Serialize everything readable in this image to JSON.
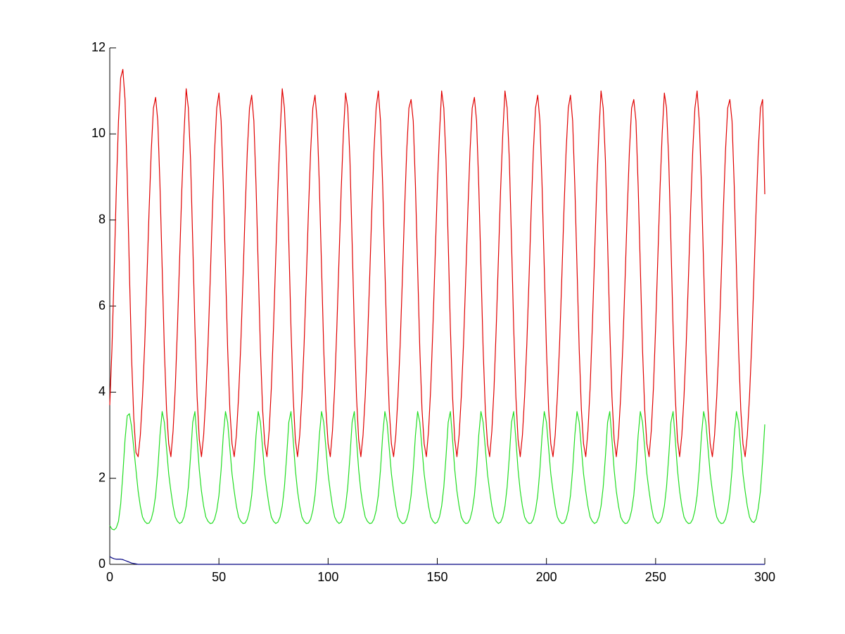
{
  "chart_data": {
    "type": "line",
    "x": [
      0,
      1,
      2,
      3,
      4,
      5,
      6,
      7,
      8,
      9,
      10,
      11,
      12,
      13,
      14,
      15,
      16,
      17,
      18,
      19,
      20,
      21,
      22,
      23,
      24,
      25,
      26,
      27,
      28,
      29,
      30,
      31,
      32,
      33,
      34,
      35,
      36,
      37,
      38,
      39,
      40,
      41,
      42,
      43,
      44,
      45,
      46,
      47,
      48,
      49,
      50,
      51,
      52,
      53,
      54,
      55,
      56,
      57,
      58,
      59,
      60,
      61,
      62,
      63,
      64,
      65,
      66,
      67,
      68,
      69,
      70,
      71,
      72,
      73,
      74,
      75,
      76,
      77,
      78,
      79,
      80,
      81,
      82,
      83,
      84,
      85,
      86,
      87,
      88,
      89,
      90,
      91,
      92,
      93,
      94,
      95,
      96,
      97,
      98,
      99,
      100,
      101,
      102,
      103,
      104,
      105,
      106,
      107,
      108,
      109,
      110,
      111,
      112,
      113,
      114,
      115,
      116,
      117,
      118,
      119,
      120,
      121,
      122,
      123,
      124,
      125,
      126,
      127,
      128,
      129,
      130,
      131,
      132,
      133,
      134,
      135,
      136,
      137,
      138,
      139,
      140,
      141,
      142,
      143,
      144,
      145,
      146,
      147,
      148,
      149,
      150,
      151,
      152,
      153,
      154,
      155,
      156,
      157,
      158,
      159,
      160,
      161,
      162,
      163,
      164,
      165,
      166,
      167,
      168,
      169,
      170,
      171,
      172,
      173,
      174,
      175,
      176,
      177,
      178,
      179,
      180,
      181,
      182,
      183,
      184,
      185,
      186,
      187,
      188,
      189,
      190,
      191,
      192,
      193,
      194,
      195,
      196,
      197,
      198,
      199,
      200,
      201,
      202,
      203,
      204,
      205,
      206,
      207,
      208,
      209,
      210,
      211,
      212,
      213,
      214,
      215,
      216,
      217,
      218,
      219,
      220,
      221,
      222,
      223,
      224,
      225,
      226,
      227,
      228,
      229,
      230,
      231,
      232,
      233,
      234,
      235,
      236,
      237,
      238,
      239,
      240,
      241,
      242,
      243,
      244,
      245,
      246,
      247,
      248,
      249,
      250,
      251,
      252,
      253,
      254,
      255,
      256,
      257,
      258,
      259,
      260,
      261,
      262,
      263,
      264,
      265,
      266,
      267,
      268,
      269,
      270,
      271,
      272,
      273,
      274,
      275,
      276,
      277,
      278,
      279,
      280,
      281,
      282,
      283,
      284,
      285,
      286,
      287,
      288,
      289,
      290,
      291,
      292,
      293,
      294,
      295,
      296,
      297,
      298,
      299,
      300
    ],
    "series": [
      {
        "color": "#e00000",
        "values": [
          3.7,
          5.0,
          6.8,
          8.7,
          10.3,
          11.3,
          11.5,
          10.8,
          9.0,
          6.8,
          4.8,
          3.4,
          2.6,
          2.5,
          3.0,
          3.9,
          5.1,
          6.6,
          8.2,
          9.6,
          10.6,
          10.85,
          10.3,
          8.8,
          6.9,
          5.0,
          3.6,
          2.8,
          2.5,
          3.1,
          4.1,
          5.5,
          7.1,
          8.7,
          10.0,
          11.05,
          10.6,
          9.4,
          7.5,
          5.5,
          3.9,
          2.9,
          2.5,
          3.0,
          3.9,
          5.1,
          6.6,
          8.2,
          9.6,
          10.6,
          10.95,
          10.3,
          8.8,
          6.9,
          5.0,
          3.6,
          2.8,
          2.5,
          3.0,
          3.9,
          5.1,
          6.6,
          8.2,
          9.6,
          10.6,
          10.9,
          10.3,
          8.8,
          6.9,
          5.0,
          3.6,
          2.8,
          2.5,
          3.1,
          4.1,
          5.5,
          7.1,
          8.7,
          10.0,
          11.05,
          10.6,
          9.4,
          7.5,
          5.5,
          3.9,
          2.9,
          2.5,
          3.0,
          3.9,
          5.1,
          6.6,
          8.2,
          9.6,
          10.6,
          10.9,
          10.3,
          8.8,
          6.9,
          5.0,
          3.6,
          2.8,
          2.5,
          3.1,
          4.1,
          5.5,
          7.1,
          8.7,
          10.0,
          10.95,
          10.6,
          9.4,
          7.5,
          5.5,
          3.9,
          2.9,
          2.5,
          3.0,
          3.9,
          5.1,
          6.6,
          8.2,
          9.6,
          10.6,
          11.0,
          10.3,
          8.8,
          6.9,
          5.0,
          3.6,
          2.8,
          2.5,
          3.0,
          3.9,
          5.1,
          6.6,
          8.2,
          9.6,
          10.6,
          10.8,
          10.3,
          8.8,
          6.9,
          5.0,
          3.6,
          2.8,
          2.5,
          3.1,
          4.1,
          5.5,
          7.1,
          8.7,
          10.0,
          11.0,
          10.6,
          9.4,
          7.5,
          5.5,
          3.9,
          2.9,
          2.5,
          3.0,
          3.9,
          5.1,
          6.6,
          8.2,
          9.6,
          10.6,
          10.85,
          10.3,
          8.8,
          6.9,
          5.0,
          3.6,
          2.8,
          2.5,
          3.1,
          4.1,
          5.5,
          7.1,
          8.7,
          10.0,
          11.0,
          10.6,
          9.4,
          7.5,
          5.5,
          3.9,
          2.9,
          2.5,
          3.0,
          3.9,
          5.1,
          6.6,
          8.2,
          9.6,
          10.6,
          10.9,
          10.3,
          8.8,
          6.9,
          5.0,
          3.6,
          2.8,
          2.5,
          3.0,
          3.9,
          5.1,
          6.6,
          8.2,
          9.6,
          10.6,
          10.9,
          10.3,
          8.8,
          6.9,
          5.0,
          3.6,
          2.8,
          2.5,
          3.1,
          4.1,
          5.5,
          7.1,
          8.7,
          10.0,
          11.0,
          10.6,
          9.4,
          7.5,
          5.5,
          3.9,
          2.9,
          2.5,
          3.0,
          3.9,
          5.1,
          6.6,
          8.2,
          9.6,
          10.6,
          10.8,
          10.3,
          8.8,
          6.9,
          5.0,
          3.6,
          2.8,
          2.5,
          3.1,
          4.1,
          5.5,
          7.1,
          8.7,
          10.0,
          10.95,
          10.6,
          9.4,
          7.5,
          5.5,
          3.9,
          2.9,
          2.5,
          3.0,
          3.9,
          5.1,
          6.6,
          8.2,
          9.6,
          10.6,
          11.0,
          10.3,
          8.8,
          6.9,
          5.0,
          3.6,
          2.8,
          2.5,
          3.0,
          3.9,
          5.1,
          6.6,
          8.2,
          9.6,
          10.6,
          10.8,
          10.3,
          8.8,
          6.9,
          5.0,
          3.6,
          2.8,
          2.5,
          3.0,
          3.9,
          5.1,
          6.6,
          8.2,
          9.6,
          10.6,
          10.8,
          8.6
        ]
      },
      {
        "color": "#22dd22",
        "values": [
          0.9,
          0.82,
          0.8,
          0.85,
          1.0,
          1.4,
          2.1,
          2.9,
          3.45,
          3.5,
          3.2,
          2.7,
          2.2,
          1.7,
          1.35,
          1.1,
          1.0,
          0.95,
          0.96,
          1.05,
          1.25,
          1.6,
          2.2,
          3.0,
          3.55,
          3.3,
          2.7,
          2.1,
          1.7,
          1.35,
          1.1,
          1.0,
          0.95,
          0.98,
          1.1,
          1.35,
          1.8,
          2.5,
          3.3,
          3.55,
          2.9,
          2.2,
          1.7,
          1.35,
          1.1,
          1.0,
          0.95,
          0.96,
          1.05,
          1.25,
          1.6,
          2.2,
          3.0,
          3.55,
          3.3,
          2.7,
          2.1,
          1.7,
          1.35,
          1.1,
          1.0,
          0.95,
          0.96,
          1.05,
          1.25,
          1.6,
          2.2,
          3.0,
          3.55,
          3.3,
          2.7,
          2.1,
          1.7,
          1.35,
          1.1,
          1.0,
          0.95,
          0.98,
          1.1,
          1.35,
          1.8,
          2.5,
          3.3,
          3.55,
          2.9,
          2.2,
          1.7,
          1.35,
          1.1,
          1.0,
          0.95,
          0.96,
          1.05,
          1.25,
          1.6,
          2.2,
          3.0,
          3.55,
          3.3,
          2.7,
          2.1,
          1.7,
          1.35,
          1.1,
          1.0,
          0.95,
          0.98,
          1.1,
          1.35,
          1.8,
          2.5,
          3.3,
          3.55,
          2.9,
          2.2,
          1.7,
          1.35,
          1.1,
          1.0,
          0.95,
          0.96,
          1.05,
          1.25,
          1.6,
          2.2,
          3.0,
          3.55,
          3.3,
          2.7,
          2.1,
          1.7,
          1.35,
          1.1,
          1.0,
          0.95,
          0.96,
          1.05,
          1.25,
          1.6,
          2.2,
          3.0,
          3.55,
          3.3,
          2.7,
          2.1,
          1.7,
          1.35,
          1.1,
          1.0,
          0.95,
          0.98,
          1.1,
          1.35,
          1.8,
          2.5,
          3.3,
          3.55,
          2.9,
          2.2,
          1.7,
          1.35,
          1.1,
          1.0,
          0.95,
          0.96,
          1.05,
          1.25,
          1.6,
          2.2,
          3.0,
          3.55,
          3.3,
          2.7,
          2.1,
          1.7,
          1.35,
          1.1,
          1.0,
          0.95,
          0.98,
          1.1,
          1.35,
          1.8,
          2.5,
          3.3,
          3.55,
          2.9,
          2.2,
          1.7,
          1.35,
          1.1,
          1.0,
          0.95,
          0.96,
          1.05,
          1.25,
          1.6,
          2.2,
          3.0,
          3.55,
          3.3,
          2.7,
          2.1,
          1.7,
          1.35,
          1.1,
          1.0,
          0.95,
          0.96,
          1.05,
          1.25,
          1.6,
          2.2,
          3.0,
          3.55,
          3.3,
          2.7,
          2.1,
          1.7,
          1.35,
          1.1,
          1.0,
          0.95,
          0.98,
          1.1,
          1.35,
          1.8,
          2.5,
          3.3,
          3.55,
          2.9,
          2.2,
          1.7,
          1.35,
          1.1,
          1.0,
          0.95,
          0.96,
          1.05,
          1.25,
          1.6,
          2.2,
          3.0,
          3.55,
          3.3,
          2.7,
          2.1,
          1.7,
          1.35,
          1.1,
          1.0,
          0.95,
          0.98,
          1.1,
          1.35,
          1.8,
          2.5,
          3.3,
          3.55,
          2.9,
          2.2,
          1.7,
          1.35,
          1.1,
          1.0,
          0.95,
          0.96,
          1.05,
          1.25,
          1.6,
          2.2,
          3.0,
          3.55,
          3.3,
          2.7,
          2.1,
          1.7,
          1.35,
          1.1,
          1.0,
          0.95,
          0.96,
          1.05,
          1.25,
          1.6,
          2.2,
          3.0,
          3.55,
          3.3,
          2.7,
          2.1,
          1.7,
          1.35,
          1.1,
          1.0,
          0.97,
          1.05,
          1.3,
          1.7,
          2.4,
          3.25
        ]
      },
      {
        "color": "#000080",
        "values": [
          0.18,
          0.15,
          0.13,
          0.12,
          0.12,
          0.12,
          0.11,
          0.09,
          0.07,
          0.05,
          0.03,
          0.02,
          0.01,
          0,
          0,
          0,
          0,
          0,
          0,
          0,
          0,
          0,
          0,
          0,
          0,
          0,
          0,
          0,
          0,
          0,
          0,
          0,
          0,
          0,
          0,
          0,
          0,
          0,
          0,
          0,
          0,
          0,
          0,
          0,
          0,
          0,
          0,
          0,
          0,
          0,
          0,
          0,
          0,
          0,
          0,
          0,
          0,
          0,
          0,
          0,
          0,
          0,
          0,
          0,
          0,
          0,
          0,
          0,
          0,
          0,
          0,
          0,
          0,
          0,
          0,
          0,
          0,
          0,
          0,
          0,
          0,
          0,
          0,
          0,
          0,
          0,
          0,
          0,
          0,
          0,
          0,
          0,
          0,
          0,
          0,
          0,
          0,
          0,
          0,
          0,
          0,
          0,
          0,
          0,
          0,
          0,
          0,
          0,
          0,
          0,
          0,
          0,
          0,
          0,
          0,
          0,
          0,
          0,
          0,
          0,
          0,
          0,
          0,
          0,
          0,
          0,
          0,
          0,
          0,
          0,
          0,
          0,
          0,
          0,
          0,
          0,
          0,
          0,
          0,
          0,
          0,
          0,
          0,
          0,
          0,
          0,
          0,
          0,
          0,
          0,
          0,
          0,
          0,
          0,
          0,
          0,
          0,
          0,
          0,
          0,
          0,
          0,
          0,
          0,
          0,
          0,
          0,
          0,
          0,
          0,
          0,
          0,
          0,
          0,
          0,
          0,
          0,
          0,
          0,
          0,
          0,
          0,
          0,
          0,
          0,
          0,
          0,
          0,
          0,
          0,
          0,
          0,
          0,
          0,
          0,
          0,
          0,
          0,
          0,
          0,
          0,
          0,
          0,
          0,
          0,
          0,
          0,
          0,
          0,
          0,
          0,
          0,
          0,
          0,
          0,
          0,
          0,
          0,
          0,
          0,
          0,
          0,
          0,
          0,
          0,
          0,
          0,
          0,
          0,
          0,
          0,
          0,
          0,
          0,
          0,
          0,
          0,
          0,
          0,
          0,
          0,
          0,
          0,
          0,
          0,
          0,
          0,
          0,
          0,
          0,
          0,
          0,
          0,
          0,
          0,
          0,
          0,
          0,
          0,
          0,
          0,
          0,
          0,
          0,
          0,
          0,
          0,
          0,
          0,
          0,
          0,
          0,
          0,
          0,
          0,
          0,
          0,
          0,
          0,
          0,
          0,
          0,
          0,
          0,
          0,
          0,
          0,
          0,
          0,
          0,
          0,
          0,
          0,
          0,
          0,
          0,
          0,
          0,
          0,
          0,
          0
        ]
      }
    ],
    "xlim": [
      0,
      300
    ],
    "xticks": [
      0,
      50,
      100,
      150,
      200,
      250,
      300
    ],
    "ylim": [
      0,
      12
    ],
    "yticks": [
      0,
      2,
      4,
      6,
      8,
      10,
      12
    ],
    "grid": false
  }
}
